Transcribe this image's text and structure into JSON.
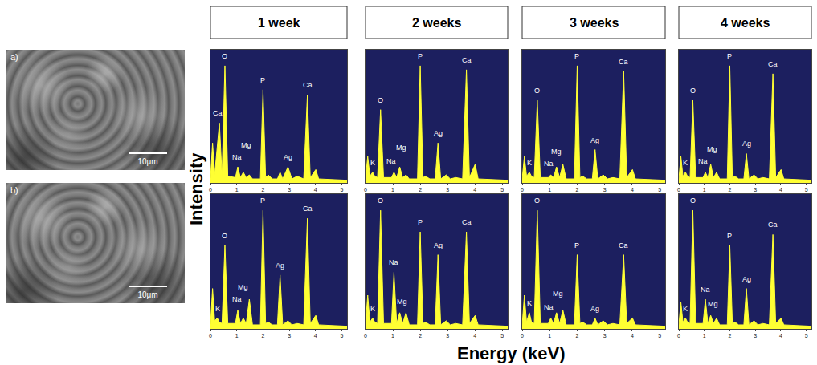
{
  "columns": [
    "1 week",
    "2 weeks",
    "3 weeks",
    "4 weeks"
  ],
  "micrographs": [
    {
      "label": "a)",
      "scale_bar": "10μm"
    },
    {
      "label": "b)",
      "scale_bar": "10μm"
    }
  ],
  "xlabel": "Energy (keV)",
  "ylabel": "Intensity",
  "chart_data": [
    {
      "type": "area",
      "color": "#ffff33",
      "grid": false,
      "tick_labels": "x",
      "xlim": [
        0,
        5.2
      ],
      "xticks": [
        0,
        1,
        2,
        3,
        4,
        5
      ],
      "ylim": [
        0,
        100
      ],
      "yticks": [],
      "x": [
        0,
        0.08,
        0.16,
        0.26,
        0.34,
        0.44,
        0.55,
        0.66,
        0.95,
        1.04,
        1.14,
        1.25,
        1.36,
        1.48,
        1.6,
        1.9,
        2.0,
        2.1,
        2.2,
        2.35,
        2.55,
        2.65,
        2.75,
        2.95,
        3.1,
        3.3,
        3.55,
        3.69,
        3.8,
        4.01,
        4.12,
        5.2
      ],
      "values": [
        3,
        30,
        6,
        30,
        45,
        5,
        88,
        5,
        4,
        12,
        4,
        8,
        4,
        6,
        3,
        3,
        70,
        4,
        6,
        3,
        3,
        8,
        3,
        12,
        3,
        5,
        3,
        66,
        4,
        10,
        3,
        2
      ],
      "annotations": [
        {
          "text": "Ca",
          "x": 0.28,
          "y": 48
        },
        {
          "text": "O",
          "x": 0.55,
          "y": 91
        },
        {
          "text": "Na",
          "x": 1.0,
          "y": 15
        },
        {
          "text": "Mg",
          "x": 1.35,
          "y": 24
        },
        {
          "text": "P",
          "x": 2.0,
          "y": 73
        },
        {
          "text": "Ag",
          "x": 2.95,
          "y": 15
        },
        {
          "text": "Ca",
          "x": 3.69,
          "y": 69
        }
      ]
    },
    {
      "type": "area",
      "color": "#ffff33",
      "grid": false,
      "tick_labels": "x",
      "xlim": [
        0,
        5.2
      ],
      "xticks": [
        0,
        1,
        2,
        3,
        4,
        5
      ],
      "ylim": [
        0,
        100
      ],
      "yticks": [],
      "x": [
        0,
        0.08,
        0.16,
        0.26,
        0.34,
        0.44,
        0.55,
        0.66,
        0.95,
        1.04,
        1.14,
        1.25,
        1.36,
        1.48,
        1.6,
        1.9,
        2.0,
        2.1,
        2.2,
        2.35,
        2.55,
        2.65,
        2.75,
        2.95,
        3.1,
        3.3,
        3.55,
        3.69,
        3.8,
        4.01,
        4.12,
        5.2
      ],
      "values": [
        3,
        20,
        5,
        8,
        5,
        4,
        55,
        4,
        4,
        8,
        4,
        12,
        4,
        6,
        3,
        3,
        88,
        4,
        5,
        3,
        3,
        30,
        3,
        6,
        3,
        4,
        3,
        85,
        4,
        14,
        3,
        2
      ],
      "annotations": [
        {
          "text": "K",
          "x": 0.26,
          "y": 11
        },
        {
          "text": "O",
          "x": 0.55,
          "y": 58
        },
        {
          "text": "Na",
          "x": 0.95,
          "y": 12
        },
        {
          "text": "Mg",
          "x": 1.3,
          "y": 22
        },
        {
          "text": "P",
          "x": 2.0,
          "y": 91
        },
        {
          "text": "Ag",
          "x": 2.65,
          "y": 33
        },
        {
          "text": "Ca",
          "x": 3.69,
          "y": 88
        }
      ]
    },
    {
      "type": "area",
      "color": "#ffff33",
      "grid": false,
      "tick_labels": "x",
      "xlim": [
        0,
        5.2
      ],
      "xticks": [
        0,
        1,
        2,
        3,
        4,
        5
      ],
      "ylim": [
        0,
        100
      ],
      "yticks": [],
      "x": [
        0,
        0.08,
        0.16,
        0.26,
        0.34,
        0.44,
        0.55,
        0.66,
        0.95,
        1.04,
        1.14,
        1.25,
        1.36,
        1.48,
        1.6,
        1.9,
        2.0,
        2.1,
        2.2,
        2.35,
        2.55,
        2.65,
        2.75,
        2.95,
        3.1,
        3.3,
        3.55,
        3.69,
        3.8,
        4.01,
        4.12,
        5.2
      ],
      "values": [
        3,
        20,
        5,
        8,
        5,
        4,
        62,
        4,
        4,
        6,
        4,
        12,
        4,
        14,
        3,
        3,
        88,
        4,
        5,
        3,
        3,
        25,
        3,
        6,
        3,
        4,
        3,
        84,
        4,
        10,
        3,
        2
      ],
      "annotations": [
        {
          "text": "K",
          "x": 0.26,
          "y": 11
        },
        {
          "text": "O",
          "x": 0.55,
          "y": 65
        },
        {
          "text": "Na",
          "x": 0.95,
          "y": 10
        },
        {
          "text": "Mg",
          "x": 1.25,
          "y": 19
        },
        {
          "text": "P",
          "x": 2.0,
          "y": 91
        },
        {
          "text": "Ag",
          "x": 2.65,
          "y": 28
        },
        {
          "text": "Ca",
          "x": 3.69,
          "y": 87
        }
      ]
    },
    {
      "type": "area",
      "color": "#ffff33",
      "grid": false,
      "tick_labels": "x",
      "xlim": [
        0,
        5.2
      ],
      "xticks": [
        0,
        1,
        2,
        3,
        4,
        5
      ],
      "ylim": [
        0,
        100
      ],
      "yticks": [],
      "x": [
        0,
        0.08,
        0.16,
        0.26,
        0.34,
        0.44,
        0.55,
        0.66,
        0.95,
        1.04,
        1.14,
        1.25,
        1.36,
        1.48,
        1.6,
        1.9,
        2.0,
        2.1,
        2.2,
        2.35,
        2.55,
        2.65,
        2.75,
        2.95,
        3.1,
        3.3,
        3.55,
        3.69,
        3.8,
        4.01,
        4.12,
        5.2
      ],
      "values": [
        3,
        20,
        5,
        8,
        5,
        4,
        62,
        4,
        4,
        8,
        4,
        14,
        4,
        8,
        3,
        3,
        88,
        4,
        5,
        3,
        3,
        22,
        3,
        6,
        3,
        4,
        3,
        82,
        4,
        10,
        3,
        2
      ],
      "annotations": [
        {
          "text": "K",
          "x": 0.26,
          "y": 11
        },
        {
          "text": "O",
          "x": 0.55,
          "y": 65
        },
        {
          "text": "Na",
          "x": 0.95,
          "y": 12
        },
        {
          "text": "Mg",
          "x": 1.3,
          "y": 21
        },
        {
          "text": "P",
          "x": 2.0,
          "y": 91
        },
        {
          "text": "Ag",
          "x": 2.65,
          "y": 25
        },
        {
          "text": "Ca",
          "x": 3.69,
          "y": 85
        }
      ]
    },
    {
      "type": "area",
      "color": "#ffff33",
      "grid": false,
      "tick_labels": "x",
      "xlim": [
        0,
        5.2
      ],
      "xticks": [
        0,
        1,
        2,
        3,
        4,
        5
      ],
      "ylim": [
        0,
        100
      ],
      "yticks": [],
      "x": [
        0,
        0.08,
        0.16,
        0.26,
        0.34,
        0.44,
        0.55,
        0.66,
        0.95,
        1.04,
        1.14,
        1.25,
        1.36,
        1.48,
        1.6,
        1.9,
        2.0,
        2.1,
        2.2,
        2.35,
        2.55,
        2.65,
        2.75,
        2.95,
        3.1,
        3.3,
        3.55,
        3.69,
        3.8,
        4.01,
        4.12,
        5.2
      ],
      "values": [
        3,
        30,
        6,
        8,
        5,
        4,
        62,
        4,
        4,
        14,
        4,
        8,
        4,
        22,
        3,
        3,
        88,
        4,
        5,
        3,
        3,
        40,
        3,
        6,
        3,
        4,
        3,
        82,
        4,
        10,
        3,
        2
      ],
      "annotations": [
        {
          "text": "K",
          "x": 0.26,
          "y": 11
        },
        {
          "text": "O",
          "x": 0.55,
          "y": 65
        },
        {
          "text": "Na",
          "x": 1.0,
          "y": 18
        },
        {
          "text": "Mg",
          "x": 1.25,
          "y": 27
        },
        {
          "text": "P",
          "x": 2.0,
          "y": 91
        },
        {
          "text": "Ag",
          "x": 2.65,
          "y": 43
        },
        {
          "text": "Ca",
          "x": 3.69,
          "y": 85
        }
      ]
    },
    {
      "type": "area",
      "color": "#ffff33",
      "grid": false,
      "tick_labels": "x",
      "xlim": [
        0,
        5.2
      ],
      "xticks": [
        0,
        1,
        2,
        3,
        4,
        5
      ],
      "ylim": [
        0,
        100
      ],
      "yticks": [],
      "x": [
        0,
        0.08,
        0.16,
        0.26,
        0.34,
        0.44,
        0.55,
        0.66,
        0.95,
        1.04,
        1.14,
        1.25,
        1.36,
        1.48,
        1.6,
        1.9,
        2.0,
        2.1,
        2.2,
        2.35,
        2.55,
        2.65,
        2.75,
        2.95,
        3.1,
        3.3,
        3.55,
        3.69,
        3.8,
        4.01,
        4.12,
        5.2
      ],
      "values": [
        3,
        25,
        5,
        8,
        5,
        4,
        88,
        4,
        4,
        42,
        4,
        12,
        4,
        12,
        3,
        3,
        72,
        4,
        5,
        3,
        3,
        55,
        3,
        6,
        3,
        4,
        3,
        72,
        4,
        10,
        3,
        2
      ],
      "annotations": [
        {
          "text": "K",
          "x": 0.26,
          "y": 11
        },
        {
          "text": "O",
          "x": 0.55,
          "y": 91
        },
        {
          "text": "Na",
          "x": 1.04,
          "y": 45
        },
        {
          "text": "Mg",
          "x": 1.35,
          "y": 16
        },
        {
          "text": "P",
          "x": 2.0,
          "y": 75
        },
        {
          "text": "Ag",
          "x": 2.65,
          "y": 58
        },
        {
          "text": "Ca",
          "x": 3.69,
          "y": 75
        }
      ]
    },
    {
      "type": "area",
      "color": "#ffff33",
      "grid": false,
      "tick_labels": "x",
      "xlim": [
        0,
        5.2
      ],
      "xticks": [
        0,
        1,
        2,
        3,
        4,
        5
      ],
      "ylim": [
        0,
        100
      ],
      "yticks": [],
      "x": [
        0,
        0.08,
        0.16,
        0.26,
        0.34,
        0.44,
        0.55,
        0.66,
        0.95,
        1.04,
        1.14,
        1.25,
        1.36,
        1.48,
        1.6,
        1.9,
        2.0,
        2.1,
        2.2,
        2.35,
        2.55,
        2.65,
        2.75,
        2.95,
        3.1,
        3.3,
        3.55,
        3.69,
        3.8,
        4.01,
        4.12,
        5.2
      ],
      "values": [
        3,
        25,
        5,
        12,
        5,
        4,
        88,
        4,
        4,
        8,
        4,
        12,
        4,
        14,
        3,
        3,
        55,
        4,
        5,
        3,
        3,
        8,
        3,
        6,
        3,
        4,
        3,
        55,
        4,
        8,
        3,
        2
      ],
      "annotations": [
        {
          "text": "K",
          "x": 0.26,
          "y": 15
        },
        {
          "text": "O",
          "x": 0.55,
          "y": 91
        },
        {
          "text": "Na",
          "x": 0.95,
          "y": 12
        },
        {
          "text": "Mg",
          "x": 1.3,
          "y": 22
        },
        {
          "text": "P",
          "x": 2.0,
          "y": 58
        },
        {
          "text": "Ag",
          "x": 2.65,
          "y": 11
        },
        {
          "text": "Ca",
          "x": 3.69,
          "y": 58
        }
      ]
    },
    {
      "type": "area",
      "color": "#ffff33",
      "grid": false,
      "tick_labels": "x",
      "xlim": [
        0,
        5.2
      ],
      "xticks": [
        0,
        1,
        2,
        3,
        4,
        5
      ],
      "ylim": [
        0,
        100
      ],
      "yticks": [],
      "x": [
        0,
        0.08,
        0.16,
        0.26,
        0.34,
        0.44,
        0.55,
        0.66,
        0.95,
        1.04,
        1.14,
        1.25,
        1.36,
        1.48,
        1.6,
        1.9,
        2.0,
        2.1,
        2.2,
        2.35,
        2.55,
        2.65,
        2.75,
        2.95,
        3.1,
        3.3,
        3.55,
        3.69,
        3.8,
        4.01,
        4.12,
        5.2
      ],
      "values": [
        3,
        20,
        5,
        8,
        5,
        4,
        88,
        4,
        4,
        22,
        4,
        10,
        4,
        8,
        3,
        3,
        62,
        4,
        5,
        3,
        3,
        30,
        3,
        6,
        3,
        4,
        3,
        70,
        4,
        8,
        3,
        2
      ],
      "annotations": [
        {
          "text": "K",
          "x": 0.26,
          "y": 11
        },
        {
          "text": "O",
          "x": 0.55,
          "y": 91
        },
        {
          "text": "Na",
          "x": 1.04,
          "y": 25
        },
        {
          "text": "Mg",
          "x": 1.35,
          "y": 14
        },
        {
          "text": "P",
          "x": 2.0,
          "y": 65
        },
        {
          "text": "Ag",
          "x": 2.65,
          "y": 33
        },
        {
          "text": "Ca",
          "x": 3.69,
          "y": 73
        }
      ]
    }
  ]
}
